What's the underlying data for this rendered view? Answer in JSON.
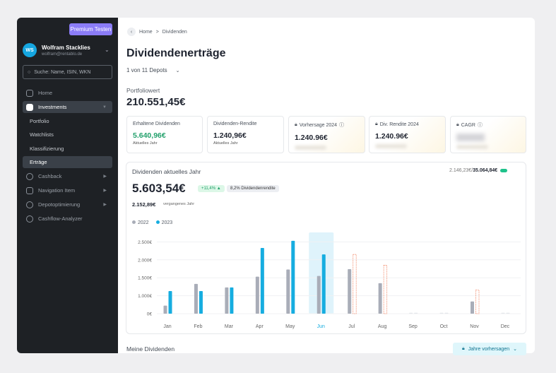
{
  "sidebar": {
    "premium": "Premium Testen",
    "user": {
      "initials": "WS",
      "name": "Wolfram Stacklies",
      "email": "wolfram@rentablo.de"
    },
    "search_placeholder": "Suche: Name, ISIN, WKN",
    "items": [
      {
        "label": "Home",
        "icon": "home-icon"
      },
      {
        "label": "Investments",
        "icon": "chart-icon"
      },
      {
        "label": "Cashback",
        "icon": "cashback-icon"
      },
      {
        "label": "Navigation Item",
        "icon": "home-icon"
      },
      {
        "label": "Depotoptimierung",
        "icon": "optimize-icon"
      },
      {
        "label": "Cashflow-Analyzer",
        "icon": "analyzer-icon"
      }
    ],
    "subitems": [
      "Portfolio",
      "Watchlists",
      "Klassifizierung",
      "Erträge"
    ]
  },
  "breadcrumb": {
    "home": "Home",
    "sep": ">",
    "current": "Dividenden"
  },
  "page": {
    "title": "Dividendenerträge",
    "depots": "1 von 11 Depots",
    "portfolio_label": "Portfoliowert",
    "portfolio_value": "210.551,45€"
  },
  "cards": [
    {
      "title": "Erhaltene Dividenden",
      "value": "5.640,96€",
      "sub": "Aktuelles Jahr"
    },
    {
      "title": "Dividenden-Rendite",
      "value": "1.240,96€",
      "sub": "Aktuelles Jahr"
    },
    {
      "title": "Vorhersage 2024",
      "value": "1.240.96€"
    },
    {
      "title": "Div. Rendite 2024",
      "value": "1.240.96€"
    },
    {
      "title": "CAGR"
    }
  ],
  "chart_card": {
    "title": "Dividenden aktuelles Jahr",
    "progress_current": "2.146,23€",
    "progress_sep": " / ",
    "progress_total": "35.064,84€",
    "total": "5.603,54€",
    "change": "+11,4% ▲",
    "yield": "8,2% Dividendenrendite",
    "last_year": "2.152,89€",
    "last_year_label": "vergangenes Jahr"
  },
  "colors": {
    "2022": "#a9adb8",
    "2023": "#16ade0",
    "forecast": "#f28b6c",
    "highlight": "#dff3fb",
    "positive": "#22a06b"
  },
  "chart_data": {
    "type": "bar",
    "categories": [
      "Jan",
      "Feb",
      "Mar",
      "Apr",
      "May",
      "Jun",
      "Jul",
      "Aug",
      "Sep",
      "Oct",
      "Nov",
      "Dec"
    ],
    "yticks": [
      "0€",
      "1.000€",
      "1.500€",
      "2.000€",
      "2.500€"
    ],
    "ytick_values": [
      0,
      1000,
      1500,
      2000,
      2500
    ],
    "highlighted": "Jun",
    "series": [
      {
        "name": "2022",
        "values": [
          450,
          1330,
          1230,
          1530,
          1730,
          1550,
          1740,
          1350,
          0,
          0,
          680,
          0
        ]
      },
      {
        "name": "2023",
        "values": [
          1130,
          1130,
          1230,
          2330,
          2530,
          2150,
          null,
          null,
          0,
          0,
          null,
          0
        ]
      },
      {
        "forecast": true,
        "values": [
          null,
          null,
          null,
          null,
          null,
          null,
          2150,
          1850,
          null,
          null,
          1160,
          null
        ]
      }
    ]
  },
  "footer": {
    "section": "Meine Dividenden",
    "forecast_button": "Jahre vorhersagen"
  }
}
